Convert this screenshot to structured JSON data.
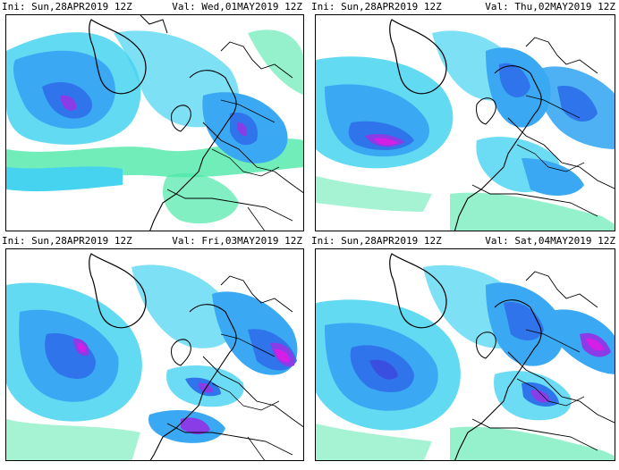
{
  "panels": [
    {
      "ini": "Ini: Sun,28APR2019 12Z",
      "val": "Val: Wed,01MAY2019 12Z"
    },
    {
      "ini": "Ini: Sun,28APR2019 12Z",
      "val": "Val: Thu,02MAY2019 12Z"
    },
    {
      "ini": "Ini: Sun,28APR2019 12Z",
      "val": "Val: Fri,03MAY2019 12Z"
    },
    {
      "ini": "Ini: Sun,28APR2019 12Z",
      "val": "Val: Sat,04MAY2019 12Z"
    }
  ],
  "colors": {
    "light_green": "#4de8a8",
    "cyan": "#46d3f0",
    "light_blue": "#3aa8f2",
    "blue": "#2f74ea",
    "dark_blue": "#3a4fe0",
    "purple": "#8a3ce6",
    "magenta": "#d51ee6",
    "coast": "#000000",
    "background": "#ffffff"
  }
}
